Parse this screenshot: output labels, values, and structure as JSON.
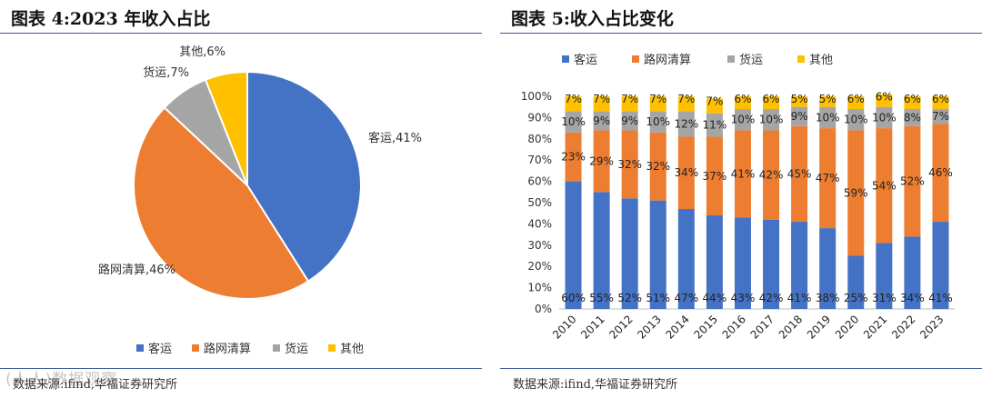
{
  "left": {
    "title": "图表 4:2023 年收入占比",
    "source": "数据来源:ifind,华福证券研究所",
    "watermark": "(人人)数据观察",
    "legend": [
      "客运",
      "路网清算",
      "货运",
      "其他"
    ]
  },
  "right": {
    "title": "图表 5:收入占比变化",
    "source": "数据来源:ifind,华福证券研究所",
    "legend": [
      "客运",
      "路网清算",
      "货运",
      "其他"
    ]
  },
  "colors": {
    "客运": "#4472c4",
    "路网清算": "#ed7d31",
    "货运": "#a5a5a5",
    "其他": "#ffc000",
    "rule": "#3e5a9a"
  },
  "chart_data": [
    {
      "type": "pie",
      "title": "2023 年收入占比",
      "slices": [
        {
          "name": "客运",
          "value": 41,
          "label": "客运,41%"
        },
        {
          "name": "路网清算",
          "value": 46,
          "label": "路网清算,46%"
        },
        {
          "name": "货运",
          "value": 7,
          "label": "货运,7%"
        },
        {
          "name": "其他",
          "value": 6,
          "label": "其他,6%"
        }
      ],
      "legend_position": "bottom"
    },
    {
      "type": "bar",
      "stacked": true,
      "title": "收入占比变化",
      "categories": [
        "2010",
        "2011",
        "2012",
        "2013",
        "2014",
        "2015",
        "2016",
        "2017",
        "2018",
        "2019",
        "2020",
        "2021",
        "2022",
        "2023"
      ],
      "series": [
        {
          "name": "客运",
          "values": [
            60,
            55,
            52,
            51,
            47,
            44,
            43,
            42,
            41,
            38,
            25,
            31,
            34,
            41
          ]
        },
        {
          "name": "路网清算",
          "values": [
            23,
            29,
            32,
            32,
            34,
            37,
            41,
            42,
            45,
            47,
            59,
            54,
            52,
            46
          ]
        },
        {
          "name": "货运",
          "values": [
            10,
            9,
            9,
            10,
            12,
            11,
            10,
            10,
            9,
            10,
            10,
            10,
            8,
            7
          ]
        },
        {
          "name": "其他",
          "values": [
            7,
            7,
            7,
            7,
            7,
            7,
            6,
            6,
            5,
            5,
            6,
            6,
            6,
            6
          ]
        }
      ],
      "yticks": [
        "0%",
        "10%",
        "20%",
        "30%",
        "40%",
        "50%",
        "60%",
        "70%",
        "80%",
        "90%",
        "100%"
      ],
      "ylim": [
        0,
        100
      ],
      "legend_position": "top",
      "grid": false
    }
  ]
}
